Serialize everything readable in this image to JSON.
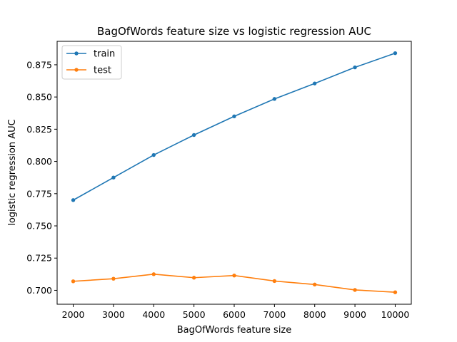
{
  "chart_data": {
    "type": "line",
    "title": "BagOfWords feature size vs logistic regression AUC",
    "xlabel": "BagOfWords feature size",
    "ylabel": "logistic regression AUC",
    "x": [
      2000,
      3000,
      4000,
      5000,
      6000,
      7000,
      8000,
      9000,
      10000
    ],
    "xticks": [
      2000,
      3000,
      4000,
      5000,
      6000,
      7000,
      8000,
      9000,
      10000
    ],
    "yticks": [
      0.7,
      0.725,
      0.75,
      0.775,
      0.8,
      0.825,
      0.85,
      0.875
    ],
    "ytick_labels": [
      "0.700",
      "0.725",
      "0.750",
      "0.775",
      "0.800",
      "0.825",
      "0.850",
      "0.875"
    ],
    "xlim": [
      1600,
      10400
    ],
    "ylim": [
      0.6892,
      0.8932
    ],
    "grid": false,
    "legend": "top-left",
    "series": [
      {
        "name": "train",
        "color": "#1f77b4",
        "values": [
          0.77,
          0.7875,
          0.805,
          0.8205,
          0.835,
          0.8485,
          0.8605,
          0.873,
          0.884
        ]
      },
      {
        "name": "test",
        "color": "#ff7f0e",
        "values": [
          0.707,
          0.709,
          0.7125,
          0.7098,
          0.7115,
          0.7072,
          0.7045,
          0.7003,
          0.6985
        ]
      }
    ]
  }
}
